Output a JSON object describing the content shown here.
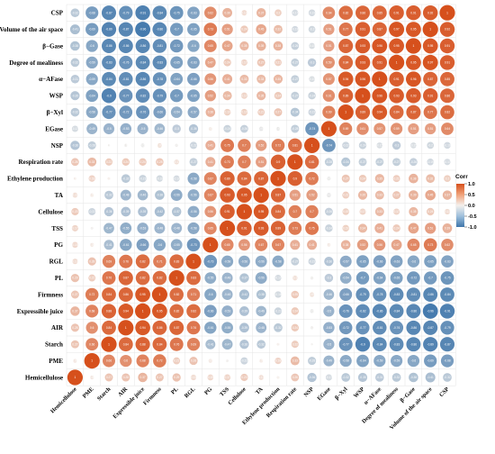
{
  "chart_data": {
    "type": "heatmap",
    "title": "",
    "variables": [
      "Hemicellulose",
      "PME",
      "Starch",
      "AIR",
      "Expressible juice",
      "Firmness",
      "PL",
      "RGL",
      "PG",
      "TSS",
      "Cellulose",
      "TA",
      "Ethylene production",
      "Respiration rate",
      "NSP",
      "EGase",
      "β−Xyl",
      "WSP",
      "α−AFase",
      "Degree of mealiness",
      "β−Gase",
      "Volume of the air space",
      "CSP"
    ],
    "row_labels": [
      "CSP",
      "Volume of the air space",
      "β−Gase",
      "Degree of mealiness",
      "α−AFase",
      "WSP",
      "β−Xyl",
      "EGase",
      "NSP",
      "Respiration rate",
      "Ethylene production",
      "TA",
      "Cellulose",
      "TSS",
      "PG",
      "RGL",
      "PL",
      "Firmness",
      "Expressible juice",
      "AIR",
      "Starch",
      "PME",
      "Hemicellulose"
    ],
    "col_labels": [
      "Hemicellulose",
      "PME",
      "Starch",
      "AIR",
      "Expressible juice",
      "Firmness",
      "PL",
      "RGL",
      "PG",
      "TSS",
      "Cellulose",
      "TA",
      "Ethylene production",
      "Respiration rate",
      "NSP",
      "EGase",
      "β−Xyl",
      "WSP",
      "α−AFase",
      "Degree of mealiness",
      "β−Gase",
      "Volume of the air space",
      "CSP"
    ],
    "matrix": [
      [
        -0.32,
        -0.68,
        -0.87,
        -0.79,
        -0.91,
        -0.84,
        -0.75,
        -0.63,
        0.62,
        0.39,
        0.13,
        0.37,
        0.2,
        -0.17,
        -0.19,
        0.64,
        0.82,
        0.86,
        0.85,
        0.91,
        0.91,
        0.92,
        1
      ],
      [
        -0.41,
        -0.69,
        -0.89,
        -0.87,
        -0.96,
        -0.86,
        -0.7,
        -0.65,
        0.73,
        0.51,
        0.24,
        0.45,
        0.32,
        -0.19,
        -0.2,
        0.51,
        0.77,
        0.91,
        0.87,
        0.97,
        0.95,
        1,
        0.92
      ],
      [
        -0.38,
        -0.6,
        -0.86,
        -0.86,
        -0.86,
        -0.81,
        -0.72,
        -0.6,
        0.65,
        0.47,
        0.35,
        0.39,
        0.38,
        -0.26,
        -0.15,
        0.51,
        0.87,
        0.93,
        0.96,
        0.95,
        1,
        0.95,
        0.91
      ],
      [
        -0.32,
        -0.59,
        -0.83,
        -0.76,
        -0.84,
        -0.83,
        -0.65,
        -0.63,
        0.47,
        0.24,
        0.17,
        0.27,
        0.21,
        -0.27,
        -0.3,
        0.59,
        0.84,
        0.93,
        0.91,
        1,
        0.95,
        0.97,
        0.91
      ],
      [
        -0.31,
        -0.59,
        -0.84,
        -0.81,
        -0.86,
        -0.78,
        -0.64,
        -0.66,
        0.56,
        0.41,
        0.33,
        0.33,
        0.35,
        -0.27,
        -0.15,
        0.57,
        0.94,
        0.96,
        1,
        0.91,
        0.96,
        0.87,
        0.85
      ],
      [
        -0.35,
        -0.64,
        -0.9,
        -0.77,
        -0.82,
        -0.79,
        -0.7,
        -0.65,
        0.52,
        0.34,
        0.17,
        0.35,
        0.24,
        -0.27,
        -0.24,
        0.61,
        0.89,
        1,
        0.96,
        0.93,
        0.93,
        0.91,
        0.86
      ],
      [
        -0.32,
        -0.58,
        -0.77,
        -0.72,
        -0.76,
        -0.66,
        -0.54,
        -0.57,
        0.38,
        0.19,
        0.19,
        0.21,
        0.27,
        -0.34,
        -0.22,
        0.69,
        1,
        0.89,
        0.94,
        0.84,
        0.87,
        0.77,
        0.82
      ],
      [
        -0.17,
        -0.49,
        -0.5,
        -0.53,
        -0.5,
        -0.46,
        -0.3,
        -0.36,
        0.05,
        -0.24,
        -0.26,
        -0.08,
        -0.06,
        -0.28,
        -0.74,
        1,
        0.69,
        0.61,
        0.57,
        0.59,
        0.51,
        0.51,
        0.64
      ],
      [
        -0.36,
        -0.28,
        -0.02,
        -0.04,
        -0.06,
        0.09,
        -0.04,
        -0.22,
        0.41,
        0.75,
        0.7,
        0.52,
        0.72,
        0.81,
        1,
        -0.74,
        -0.22,
        -0.24,
        -0.15,
        -0.3,
        -0.15,
        -0.2,
        -0.19
      ],
      [
        0.26,
        0.33,
        0.22,
        0.24,
        0.24,
        0.25,
        0.1,
        -0.27,
        0.41,
        0.73,
        0.7,
        0.51,
        0.9,
        1,
        0.81,
        -0.28,
        -0.34,
        -0.27,
        -0.27,
        -0.27,
        -0.26,
        -0.19,
        -0.17
      ],
      [
        0.03,
        0.18,
        0.03,
        -0.32,
        -0.23,
        -0.18,
        -0.17,
        -0.58,
        0.67,
        0.89,
        0.84,
        0.87,
        1,
        0.9,
        0.72,
        -0.06,
        0.27,
        0.24,
        0.35,
        0.21,
        0.38,
        0.32,
        0.2
      ],
      [
        0.11,
        0.05,
        -0.32,
        -0.48,
        -0.46,
        -0.38,
        -0.56,
        -0.56,
        0.67,
        0.93,
        0.95,
        1,
        0.87,
        0.51,
        0.52,
        -0.08,
        0.21,
        0.35,
        0.33,
        0.27,
        0.39,
        0.45,
        0.37
      ],
      [
        0.23,
        -0.22,
        -0.36,
        -0.39,
        -0.39,
        -0.42,
        -0.37,
        -0.56,
        0.56,
        0.91,
        1,
        0.95,
        0.84,
        0.7,
        0.7,
        -0.26,
        0.19,
        0.17,
        0.33,
        0.17,
        0.35,
        0.24,
        0.13
      ],
      [
        0.17,
        -0.03,
        -0.47,
        -0.55,
        -0.53,
        -0.48,
        -0.48,
        -0.58,
        0.65,
        1,
        0.91,
        0.93,
        0.89,
        0.73,
        0.75,
        -0.24,
        0.19,
        0.34,
        0.41,
        0.24,
        0.47,
        0.51,
        0.39
      ],
      [
        0.15,
        0.06,
        -0.41,
        -0.61,
        -0.66,
        -0.6,
        -0.55,
        -0.73,
        1,
        0.65,
        0.56,
        0.67,
        0.67,
        0.41,
        0.41,
        0.05,
        0.38,
        0.52,
        0.56,
        0.47,
        0.65,
        0.73,
        0.62
      ],
      [
        0.13,
        0.28,
        0.69,
        0.76,
        0.82,
        0.71,
        0.83,
        1,
        -0.73,
        -0.58,
        -0.56,
        -0.56,
        -0.58,
        -0.27,
        -0.22,
        -0.36,
        -0.57,
        -0.65,
        -0.66,
        -0.63,
        -0.6,
        -0.65,
        -0.63
      ],
      [
        0.29,
        0.21,
        0.76,
        0.87,
        0.82,
        0.82,
        1,
        0.83,
        -0.55,
        -0.48,
        -0.37,
        -0.56,
        -0.17,
        0.1,
        -0.04,
        -0.3,
        -0.54,
        -0.7,
        -0.64,
        -0.65,
        -0.72,
        -0.7,
        -0.75
      ],
      [
        0.27,
        0.72,
        0.84,
        0.86,
        0.95,
        1,
        0.82,
        0.71,
        -0.6,
        -0.48,
        -0.42,
        -0.38,
        -0.18,
        0.25,
        0.09,
        -0.46,
        -0.66,
        -0.79,
        -0.78,
        -0.83,
        -0.81,
        -0.86,
        -0.84
      ],
      [
        0.37,
        0.68,
        0.88,
        0.94,
        1,
        0.95,
        0.82,
        0.82,
        -0.66,
        -0.53,
        -0.39,
        -0.46,
        -0.23,
        0.24,
        -0.06,
        -0.5,
        -0.76,
        -0.82,
        -0.86,
        -0.84,
        -0.86,
        -0.96,
        -0.91
      ],
      [
        0.28,
        0.6,
        0.84,
        1,
        0.94,
        0.86,
        0.87,
        0.76,
        -0.61,
        -0.55,
        -0.39,
        -0.48,
        -0.32,
        0.24,
        -0.04,
        -0.53,
        -0.72,
        -0.77,
        -0.81,
        -0.76,
        -0.86,
        -0.87,
        -0.79
      ],
      [
        0.27,
        0.66,
        1,
        0.84,
        0.88,
        0.84,
        0.76,
        0.69,
        -0.41,
        -0.47,
        -0.36,
        -0.32,
        0.03,
        0.22,
        -0.02,
        -0.5,
        -0.77,
        -0.9,
        -0.84,
        -0.83,
        -0.86,
        -0.89,
        -0.87
      ],
      [
        0.06,
        1,
        0.66,
        0.6,
        0.68,
        0.72,
        0.21,
        0.28,
        0.06,
        -0.03,
        -0.22,
        0.05,
        0.18,
        0.33,
        -0.28,
        -0.49,
        -0.58,
        -0.64,
        -0.59,
        -0.59,
        -0.6,
        -0.69,
        -0.68
      ],
      [
        1,
        0.06,
        0.27,
        0.28,
        0.37,
        0.27,
        0.29,
        0.13,
        0.15,
        0.17,
        0.23,
        0.11,
        0.03,
        0.26,
        -0.36,
        -0.17,
        -0.32,
        -0.35,
        -0.31,
        -0.32,
        -0.38,
        -0.41,
        -0.32
      ]
    ],
    "legend": {
      "title": "Corr",
      "ticks": [
        1.0,
        0.5,
        0.0,
        -0.5,
        -1.0
      ],
      "tick_labels": [
        "1.0",
        "0.5",
        "0.0",
        "-0.5",
        "-1.0"
      ],
      "placement": "right"
    },
    "colors": {
      "positive": "#e2622a",
      "negative": "#4e86b8",
      "neutral": "#f4f0ec"
    }
  }
}
